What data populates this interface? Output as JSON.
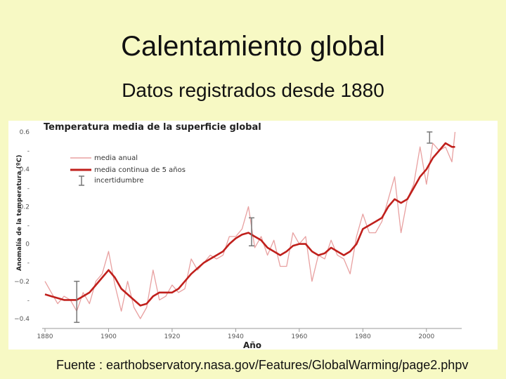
{
  "slide": {
    "title": "Calentamiento global",
    "subtitle": "Datos registrados desde 1880",
    "source": "Fuente : earthobservatory.nasa.gov/Features/GlobalWarming/page2.phpv"
  },
  "chart_data": {
    "type": "line",
    "title": "Temperatura media de la superficie global",
    "xlabel": "Año",
    "ylabel": "Anomalía de la temperatura (ºC)",
    "xlim": [
      1880,
      2010
    ],
    "ylim": [
      -0.4,
      0.6
    ],
    "xticks": [
      1880,
      1900,
      1920,
      1940,
      1960,
      1980,
      2000
    ],
    "yticks": [
      {
        "value": -0.4,
        "label": "−0.4"
      },
      {
        "value": -0.3,
        "label": "-"
      },
      {
        "value": -0.2,
        "label": "−0.2"
      },
      {
        "value": -0.1,
        "label": "-"
      },
      {
        "value": 0,
        "label": "0"
      },
      {
        "value": 0.1,
        "label": "-"
      },
      {
        "value": 0.2,
        "label": "0.2"
      },
      {
        "value": 0.3,
        "label": "-"
      },
      {
        "value": 0.4,
        "label": "0.4"
      },
      {
        "value": 0.5,
        "label": "-"
      },
      {
        "value": 0.6,
        "label": "0.6"
      }
    ],
    "legend_position": "top-left",
    "legend": {
      "annual": "media anual",
      "smooth": "media continua de 5 años",
      "uncertainty": "incertidumbre"
    },
    "colors": {
      "annual": "#e8a0a0",
      "smooth": "#c0201c",
      "uncertainty": "#777777"
    },
    "x": [
      1880,
      1882,
      1884,
      1886,
      1888,
      1890,
      1892,
      1894,
      1896,
      1898,
      1900,
      1902,
      1904,
      1906,
      1908,
      1910,
      1912,
      1914,
      1916,
      1918,
      1920,
      1922,
      1924,
      1926,
      1928,
      1930,
      1932,
      1934,
      1936,
      1938,
      1940,
      1942,
      1944,
      1946,
      1948,
      1950,
      1952,
      1954,
      1956,
      1958,
      1960,
      1962,
      1964,
      1966,
      1968,
      1970,
      1972,
      1974,
      1976,
      1978,
      1980,
      1982,
      1984,
      1986,
      1988,
      1990,
      1992,
      1994,
      1996,
      1998,
      2000,
      2002,
      2004,
      2006,
      2008,
      2009
    ],
    "series": [
      {
        "name": "media anual",
        "values": [
          -0.2,
          -0.26,
          -0.32,
          -0.28,
          -0.3,
          -0.36,
          -0.26,
          -0.32,
          -0.2,
          -0.16,
          -0.04,
          -0.22,
          -0.36,
          -0.2,
          -0.34,
          -0.4,
          -0.34,
          -0.14,
          -0.3,
          -0.28,
          -0.22,
          -0.26,
          -0.24,
          -0.08,
          -0.14,
          -0.1,
          -0.06,
          -0.08,
          -0.06,
          0.04,
          0.04,
          0.08,
          0.2,
          -0.02,
          0.04,
          -0.06,
          0.02,
          -0.12,
          -0.12,
          0.06,
          0,
          0.04,
          -0.2,
          -0.06,
          -0.08,
          0.02,
          -0.06,
          -0.08,
          -0.16,
          0.04,
          0.16,
          0.06,
          0.06,
          0.12,
          0.24,
          0.36,
          0.06,
          0.24,
          0.32,
          0.52,
          0.32,
          0.54,
          0.5,
          0.52,
          0.44,
          0.6
        ]
      },
      {
        "name": "media continua de 5 años",
        "values": [
          -0.27,
          -0.28,
          -0.29,
          -0.3,
          -0.3,
          -0.3,
          -0.28,
          -0.26,
          -0.22,
          -0.18,
          -0.14,
          -0.18,
          -0.24,
          -0.27,
          -0.3,
          -0.33,
          -0.32,
          -0.28,
          -0.26,
          -0.26,
          -0.26,
          -0.24,
          -0.2,
          -0.16,
          -0.13,
          -0.1,
          -0.08,
          -0.06,
          -0.04,
          0,
          0.03,
          0.05,
          0.06,
          0.04,
          0.02,
          -0.02,
          -0.04,
          -0.06,
          -0.04,
          -0.01,
          0,
          0,
          -0.04,
          -0.06,
          -0.05,
          -0.02,
          -0.04,
          -0.06,
          -0.04,
          0,
          0.08,
          0.1,
          0.12,
          0.14,
          0.2,
          0.24,
          0.22,
          0.24,
          0.3,
          0.36,
          0.4,
          0.46,
          0.5,
          0.54,
          0.52,
          0.52
        ]
      }
    ],
    "uncertainty_bars": [
      {
        "x": 1890,
        "low": -0.42,
        "high": -0.2
      },
      {
        "x": 1945,
        "low": -0.01,
        "high": 0.14
      },
      {
        "x": 2001,
        "low": 0.54,
        "high": 0.6
      }
    ]
  }
}
